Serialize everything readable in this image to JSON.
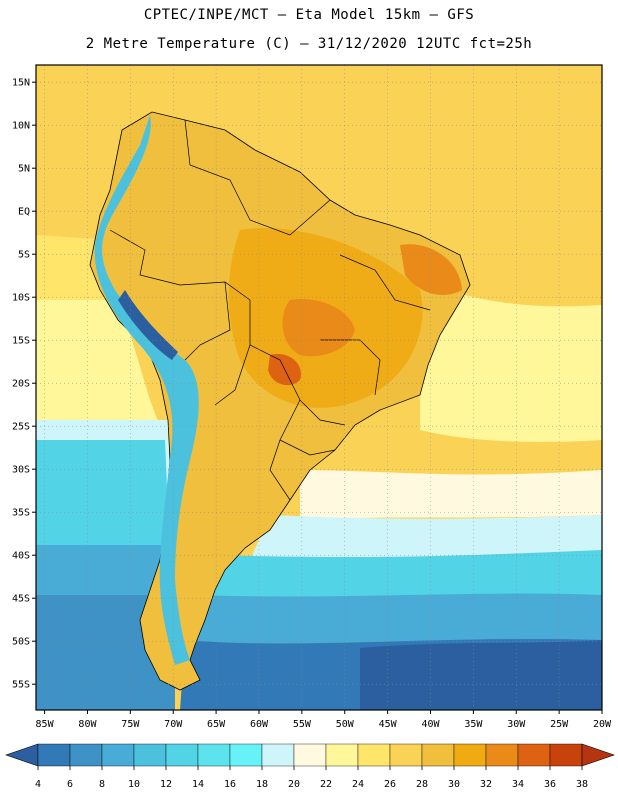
{
  "header": {
    "title_line1": "CPTEC/INPE/MCT –  Eta Model 15km – GFS",
    "title_line2": "2 Metre Temperature (C) – 31/12/2020 12UTC fct=25h"
  },
  "map": {
    "lat_labels": [
      "15N",
      "10N",
      "5N",
      "EQ",
      "5S",
      "10S",
      "15S",
      "20S",
      "25S",
      "30S",
      "35S",
      "40S",
      "45S",
      "50S",
      "55S"
    ],
    "lon_labels": [
      "85W",
      "80W",
      "75W",
      "70W",
      "65W",
      "60W",
      "55W",
      "50W",
      "45W",
      "40W",
      "35W",
      "30W",
      "25W",
      "20W"
    ],
    "lat_range": [
      17,
      -58
    ],
    "lon_range": [
      -86,
      -20
    ]
  },
  "legend": {
    "values": [
      "4",
      "6",
      "8",
      "10",
      "12",
      "14",
      "16",
      "18",
      "20",
      "22",
      "24",
      "26",
      "28",
      "30",
      "32",
      "34",
      "36",
      "38"
    ],
    "colors": [
      "#2c5fa0",
      "#3279b7",
      "#3e92c6",
      "#48acd6",
      "#4cc1de",
      "#52d3e6",
      "#5ce3ee",
      "#66f2f7",
      "#cdf5fa",
      "#fff9df",
      "#fff79a",
      "#ffe56a",
      "#fad356",
      "#f1bf3e",
      "#f0aa12",
      "#ea8a18",
      "#dd6212",
      "#c8420c",
      "#b53510"
    ]
  },
  "colors": {
    "ocean_tropical": "#fad356",
    "ocean_warm": "#ffe56a",
    "ocean_mid": "#fff79a",
    "land_warm": "#f1bf3e",
    "land_hot": "#ea8a18",
    "andes": "#4cc1de"
  }
}
